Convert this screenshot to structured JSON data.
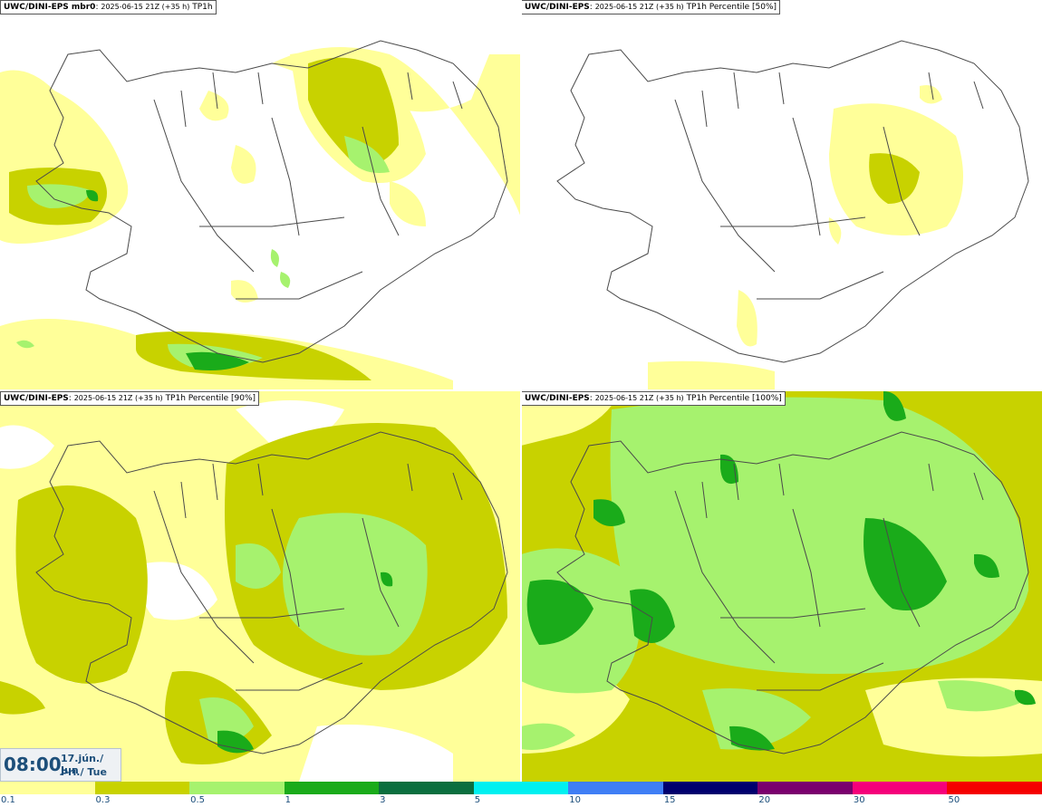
{
  "panels": [
    {
      "model": "UWC/DINI-EPS mbr0",
      "meta": "2025-06-15 21Z (+35 h)",
      "product": "TP1h"
    },
    {
      "model": "UWC/DINI-EPS",
      "meta": "2025-06-15 21Z (+35 h)",
      "product": "TP1h Percentile [50%]"
    },
    {
      "model": "UWC/DINI-EPS",
      "meta": "2025-06-15 21Z (+35 h)",
      "product": "TP1h Percentile [90%]"
    },
    {
      "model": "UWC/DINI-EPS",
      "meta": "2025-06-15 21Z (+35 h)",
      "product": "TP1h Percentile [100%]"
    }
  ],
  "valid_time": {
    "time": "08:00",
    "date_line1": "17.jún./ Jun",
    "date_line2": "Þri./ Tue"
  },
  "legend": {
    "labels": [
      "0.1",
      "0.3",
      "0.5",
      "1",
      "3",
      "5",
      "10",
      "15",
      "20",
      "30",
      "50"
    ],
    "colors": [
      "#ffff99",
      "#c8d200",
      "#a6f26e",
      "#1aab1a",
      "#0b6f3f",
      "#00f0f0",
      "#3f7ef5",
      "#00006e",
      "#7a006e",
      "#f5007a",
      "#f50000"
    ]
  },
  "colors": {
    "light_yellow": "#ffff99",
    "olive": "#c8d200",
    "light_green": "#a6f26e",
    "green": "#1aab1a",
    "dark_green": "#0b6f3f",
    "coast": "#4a4a4a"
  }
}
